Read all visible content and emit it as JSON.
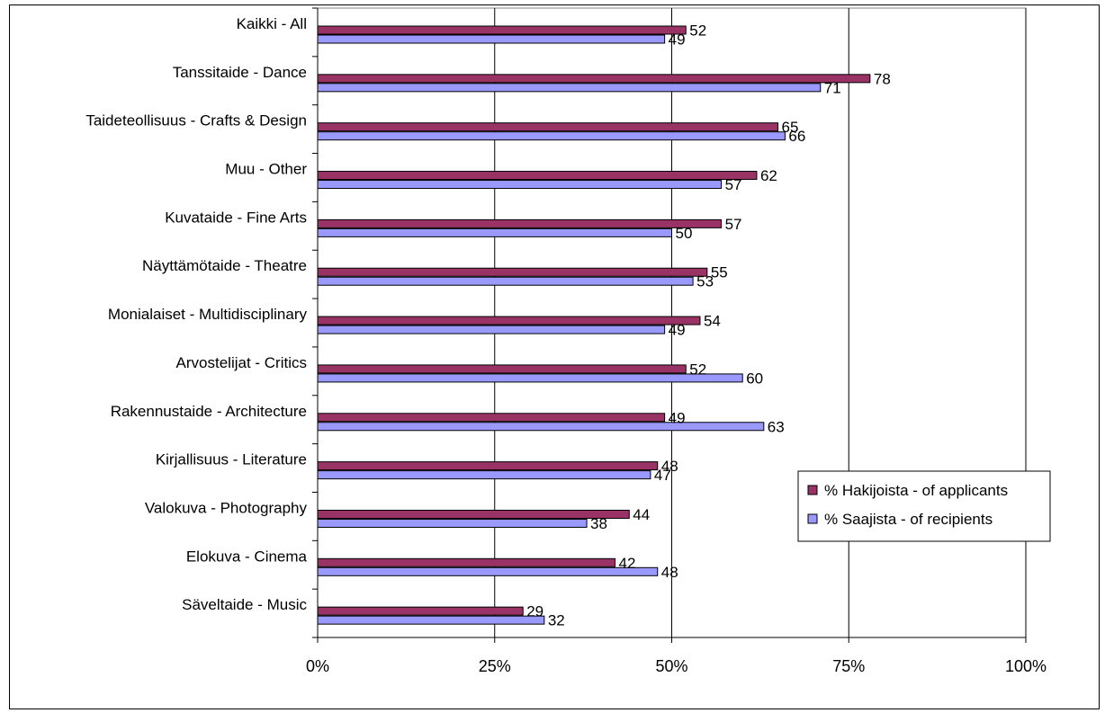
{
  "chart_data": {
    "type": "bar",
    "orientation": "horizontal",
    "categories": [
      "Kaikki  - All",
      "Tanssitaide - Dance",
      "Taideteollisuus - Crafts & Design",
      "Muu - Other",
      "Kuvataide - Fine Arts",
      "Näyttämötaide - Theatre",
      "Monialaiset - Multidisciplinary",
      "Arvostelijat - Critics",
      "Rakennustaide - Architecture",
      "Kirjallisuus - Literature",
      "Valokuva - Photography",
      "Elokuva - Cinema",
      "Säveltaide - Music"
    ],
    "series": [
      {
        "name": "% Hakijoista - of applicants",
        "color": "#993366",
        "values": [
          52,
          78,
          65,
          62,
          57,
          55,
          54,
          52,
          49,
          48,
          44,
          42,
          29
        ]
      },
      {
        "name": "% Saajista - of recipients",
        "color": "#9999ff",
        "values": [
          49,
          71,
          66,
          57,
          50,
          53,
          49,
          60,
          63,
          47,
          38,
          48,
          32
        ]
      }
    ],
    "xlim": [
      0,
      100
    ],
    "xticks": [
      "0%",
      "25%",
      "50%",
      "75%",
      "100%"
    ],
    "xtick_values": [
      0,
      25,
      50,
      75,
      100
    ],
    "grid": "vertical",
    "legend_position": "right",
    "plot_background": "#ffffff"
  }
}
